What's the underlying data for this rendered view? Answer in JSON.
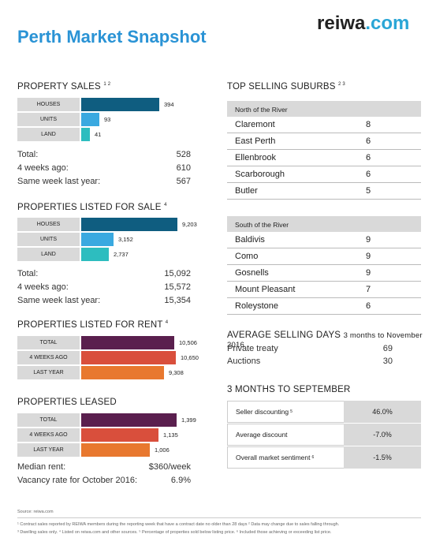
{
  "header": {
    "title": "Perth Market Snapshot",
    "logo_main": "reiwa",
    "logo_com": ".com"
  },
  "colors": {
    "title_blue": "#2a93d5",
    "houses_navy": "#0f5d80",
    "units_blue": "#3aa9e0",
    "land_teal": "#2dbdbf",
    "rent_purple": "#5a1f4e",
    "rent_red": "#d94f3c",
    "rent_orange": "#e8782f"
  },
  "property_sales": {
    "title": "PROPERTY SALES",
    "sup": "1 2",
    "bars": [
      {
        "label": "HOUSES",
        "value": "394",
        "fraction": 0.81
      },
      {
        "label": "UNITS",
        "value": "93",
        "fraction": 0.19
      },
      {
        "label": "LAND",
        "value": "41",
        "fraction": 0.09
      }
    ],
    "stats": [
      {
        "label": "Total:",
        "value": "528"
      },
      {
        "label": "4 weeks ago:",
        "value": "610"
      },
      {
        "label": "Same week last year:",
        "value": "567"
      }
    ]
  },
  "listed_for_sale": {
    "title": "PROPERTIES LISTED FOR SALE",
    "sup": "4",
    "bars": [
      {
        "label": "HOUSES",
        "value": "9,203",
        "fraction": 1.0
      },
      {
        "label": "UNITS",
        "value": "3,152",
        "fraction": 0.34
      },
      {
        "label": "LAND",
        "value": "2,737",
        "fraction": 0.29
      }
    ],
    "stats": [
      {
        "label": "Total:",
        "value": "15,092"
      },
      {
        "label": "4 weeks ago:",
        "value": "15,572"
      },
      {
        "label": "Same week last year:",
        "value": "15,354"
      }
    ]
  },
  "listed_for_rent": {
    "title": "PROPERTIES LISTED FOR RENT",
    "sup": "4",
    "bars": [
      {
        "label": "TOTAL",
        "value": "10,506",
        "fraction": 0.97
      },
      {
        "label": "4 WEEKS AGO",
        "value": "10,650",
        "fraction": 0.985
      },
      {
        "label": "LAST YEAR",
        "value": "9,308",
        "fraction": 0.86
      }
    ]
  },
  "leased": {
    "title": "PROPERTIES LEASED",
    "bars": [
      {
        "label": "TOTAL",
        "value": "1,399",
        "fraction": 1.0
      },
      {
        "label": "4 WEEKS AGO",
        "value": "1,135",
        "fraction": 0.81
      },
      {
        "label": "LAST YEAR",
        "value": "1,006",
        "fraction": 0.72
      }
    ],
    "stats": [
      {
        "label": "Median rent:",
        "value": "$360/week"
      },
      {
        "label": "Vacancy rate for October 2016:",
        "value": "6.9%"
      }
    ]
  },
  "top_suburbs": {
    "title": "TOP SELLING SUBURBS",
    "sup": "2 3",
    "north": {
      "heading": "North of the River",
      "rows": [
        {
          "name": "Claremont",
          "value": "8"
        },
        {
          "name": "East Perth",
          "value": "6"
        },
        {
          "name": "Ellenbrook",
          "value": "6"
        },
        {
          "name": "Scarborough",
          "value": "6"
        },
        {
          "name": "Butler",
          "value": "5"
        }
      ]
    },
    "south": {
      "heading": "South of the River",
      "rows": [
        {
          "name": "Baldivis",
          "value": "9"
        },
        {
          "name": "Como",
          "value": "9"
        },
        {
          "name": "Gosnells",
          "value": "9"
        },
        {
          "name": "Mount Pleasant",
          "value": "7"
        },
        {
          "name": "Roleystone",
          "value": "6"
        }
      ]
    }
  },
  "avg_days": {
    "title": "AVERAGE SELLING DAYS",
    "subtitle": "3 months to November 2016",
    "rows": [
      {
        "label": "Private treaty",
        "value": "69"
      },
      {
        "label": "Auctions",
        "value": "30"
      }
    ]
  },
  "three_months": {
    "title": "3 MONTHS TO SEPTEMBER",
    "rows": [
      {
        "label": "Seller discounting",
        "sup": "5",
        "value": "46.0%"
      },
      {
        "label": "Average discount",
        "sup": "",
        "value": "-7.0%"
      },
      {
        "label": "Overall market sentiment",
        "sup": "6",
        "value": "-1.5%"
      }
    ]
  },
  "footer": {
    "source": "Source: reiwa.com",
    "note1": "¹ Contract sales reported by REIWA members during the reporting week that have a contract date no older than 28 days ² Data may change due to sales falling through.",
    "note2": "³ Dwelling sales only. ⁴ Listed on reiwa.com and other sources. ⁵ Percentage of properties sold below listing price. ⁶ Included those achieving or exceeding list price."
  }
}
